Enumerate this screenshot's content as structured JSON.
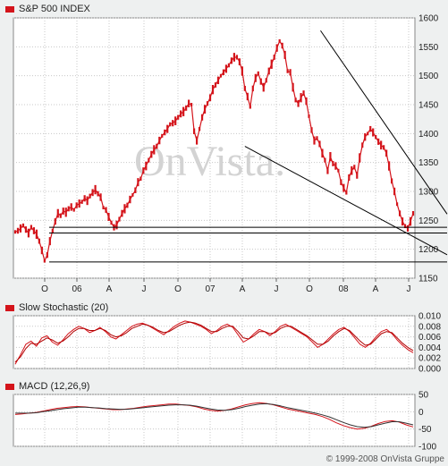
{
  "colors": {
    "price": "#d4141b",
    "signal": "#b00000",
    "grid": "#c8c8c8",
    "plot_bg": "#ffffff",
    "page_bg": "#eef0f0",
    "trend": "#000000"
  },
  "watermark": "OnVista.",
  "copyright": "© 1999-2008 OnVista Gruppe",
  "chart_data": [
    {
      "type": "line",
      "panel": "price",
      "title": "S&P 500 INDEX",
      "ylim": [
        1150,
        1600
      ],
      "y_ticks": [
        1150,
        1200,
        1250,
        1300,
        1350,
        1400,
        1450,
        1500,
        1550,
        1600
      ],
      "x_ticks": [
        "O",
        "06",
        "A",
        "J",
        "O",
        "07",
        "A",
        "J",
        "O",
        "08",
        "A",
        "J"
      ],
      "grid": true,
      "series": [
        {
          "x": [
            0,
            3,
            6,
            9,
            12,
            15,
            18,
            21,
            24,
            27,
            30,
            33,
            36,
            39,
            42,
            45,
            48,
            51,
            54,
            57,
            60,
            63,
            66,
            69,
            72,
            75,
            78,
            81,
            84,
            87,
            90,
            93,
            96,
            99,
            102,
            105,
            108,
            111,
            114,
            117,
            120,
            123,
            126,
            129,
            132,
            135,
            138,
            141,
            144,
            147,
            150,
            153,
            156,
            159,
            162,
            165,
            168,
            171,
            174,
            177,
            180,
            183,
            186,
            189,
            192,
            195,
            198,
            201,
            204,
            207,
            210,
            213,
            216,
            219,
            222,
            225,
            228,
            231,
            234,
            237,
            240,
            243,
            246,
            249,
            252,
            255,
            258,
            261,
            264,
            267,
            270,
            273,
            276,
            279,
            282,
            285,
            288,
            291,
            294,
            297,
            300,
            303,
            306,
            309,
            312,
            315,
            318,
            321,
            324,
            327,
            330,
            333,
            336,
            339,
            342,
            345,
            348,
            351,
            354,
            357,
            360,
            363,
            366,
            369,
            372,
            375,
            378,
            381,
            384,
            387,
            390,
            393,
            396,
            399,
            402,
            405,
            408,
            411,
            414,
            417,
            420,
            423,
            426,
            429,
            432,
            435,
            438,
            441,
            444,
            447
          ],
          "values": [
            1230,
            1232,
            1236,
            1241,
            1234,
            1228,
            1238,
            1232,
            1226,
            1214,
            1198,
            1180,
            1190,
            1214,
            1232,
            1248,
            1262,
            1258,
            1266,
            1264,
            1270,
            1273,
            1268,
            1276,
            1279,
            1282,
            1288,
            1284,
            1292,
            1298,
            1303,
            1296,
            1290,
            1272,
            1268,
            1256,
            1246,
            1238,
            1242,
            1252,
            1262,
            1270,
            1276,
            1286,
            1294,
            1302,
            1316,
            1322,
            1336,
            1344,
            1354,
            1364,
            1372,
            1378,
            1388,
            1396,
            1402,
            1408,
            1416,
            1418,
            1422,
            1428,
            1434,
            1438,
            1444,
            1452,
            1450,
            1404,
            1388,
            1408,
            1428,
            1442,
            1452,
            1462,
            1476,
            1484,
            1492,
            1500,
            1506,
            1512,
            1518,
            1526,
            1532,
            1532,
            1524,
            1508,
            1478,
            1464,
            1446,
            1478,
            1496,
            1504,
            1490,
            1480,
            1492,
            1508,
            1520,
            1532,
            1548,
            1560,
            1552,
            1536,
            1508,
            1506,
            1480,
            1458,
            1452,
            1462,
            1470,
            1456,
            1430,
            1406,
            1388,
            1392,
            1382,
            1366,
            1354,
            1336,
            1360,
            1348,
            1344,
            1336,
            1316,
            1306,
            1298,
            1324,
            1336,
            1342,
            1328,
            1358,
            1380,
            1394,
            1400,
            1408,
            1402,
            1394,
            1386,
            1380,
            1376,
            1366,
            1344,
            1318,
            1300,
            1278,
            1262,
            1248,
            1240,
            1236,
            1248,
            1262
          ]
        }
      ],
      "hlines": [
        1178,
        1228,
        1238
      ]
    },
    {
      "type": "line",
      "panel": "stochastic",
      "title": "Slow Stochastic (20)",
      "ylim": [
        0,
        0.01
      ],
      "y_ticks": [
        "0.010",
        "0.008",
        "0.006",
        "0.004",
        "0.002",
        "0.000"
      ],
      "grid": true,
      "series": [
        {
          "values": [
            0.0008,
            0.0026,
            0.0046,
            0.0052,
            0.0042,
            0.0058,
            0.0062,
            0.005,
            0.0044,
            0.0054,
            0.0066,
            0.0074,
            0.008,
            0.0076,
            0.0068,
            0.0072,
            0.0078,
            0.007,
            0.006,
            0.0056,
            0.0064,
            0.0072,
            0.008,
            0.0084,
            0.0086,
            0.0082,
            0.0076,
            0.007,
            0.0064,
            0.0072,
            0.008,
            0.0086,
            0.009,
            0.0088,
            0.0084,
            0.008,
            0.0074,
            0.0066,
            0.0072,
            0.008,
            0.0084,
            0.0078,
            0.0064,
            0.005,
            0.0056,
            0.0066,
            0.0074,
            0.007,
            0.0062,
            0.007,
            0.008,
            0.0084,
            0.0078,
            0.0072,
            0.0066,
            0.006,
            0.005,
            0.004,
            0.0046,
            0.0056,
            0.0066,
            0.0074,
            0.0078,
            0.007,
            0.0058,
            0.0046,
            0.004,
            0.0048,
            0.006,
            0.007,
            0.0074,
            0.0066,
            0.0054,
            0.0044,
            0.0036,
            0.003
          ]
        },
        {
          "values": [
            0.0012,
            0.0022,
            0.0038,
            0.0048,
            0.0046,
            0.0052,
            0.0058,
            0.0054,
            0.0048,
            0.0052,
            0.006,
            0.007,
            0.0076,
            0.0076,
            0.0072,
            0.0072,
            0.0076,
            0.0072,
            0.0064,
            0.006,
            0.0062,
            0.0068,
            0.0076,
            0.008,
            0.0084,
            0.0082,
            0.0078,
            0.0072,
            0.0068,
            0.007,
            0.0076,
            0.0082,
            0.0086,
            0.0088,
            0.0086,
            0.0082,
            0.0076,
            0.007,
            0.007,
            0.0076,
            0.008,
            0.008,
            0.007,
            0.0058,
            0.0056,
            0.0062,
            0.007,
            0.007,
            0.0066,
            0.0068,
            0.0076,
            0.008,
            0.008,
            0.0074,
            0.0068,
            0.0062,
            0.0054,
            0.0046,
            0.0046,
            0.0052,
            0.0062,
            0.007,
            0.0076,
            0.0072,
            0.0062,
            0.0052,
            0.0044,
            0.0046,
            0.0056,
            0.0066,
            0.007,
            0.0068,
            0.0058,
            0.0048,
            0.004,
            0.0034
          ]
        }
      ]
    },
    {
      "type": "line",
      "panel": "macd",
      "title": "MACD (12,26,9)",
      "ylim": [
        -100,
        50
      ],
      "y_ticks": [
        50,
        0,
        -50,
        -100
      ],
      "grid": true,
      "series": [
        {
          "values": [
            -8,
            -6,
            -4,
            -2,
            2,
            6,
            10,
            12,
            14,
            15,
            14,
            12,
            10,
            8,
            6,
            6,
            8,
            10,
            13,
            16,
            18,
            20,
            22,
            22,
            20,
            18,
            14,
            8,
            4,
            2,
            4,
            8,
            14,
            20,
            24,
            26,
            24,
            20,
            14,
            8,
            4,
            0,
            -4,
            -8,
            -14,
            -22,
            -32,
            -40,
            -46,
            -50,
            -48,
            -42,
            -34,
            -28,
            -26,
            -30,
            -38,
            -44
          ]
        },
        {
          "values": [
            -4,
            -4,
            -4,
            -3,
            0,
            3,
            6,
            9,
            11,
            13,
            13,
            12,
            11,
            9,
            8,
            7,
            7,
            9,
            11,
            13,
            15,
            17,
            19,
            20,
            20,
            19,
            16,
            12,
            8,
            5,
            4,
            6,
            10,
            15,
            19,
            22,
            23,
            21,
            17,
            12,
            8,
            4,
            0,
            -4,
            -9,
            -15,
            -23,
            -31,
            -38,
            -43,
            -45,
            -43,
            -38,
            -33,
            -29,
            -29,
            -33,
            -38
          ]
        }
      ]
    }
  ]
}
